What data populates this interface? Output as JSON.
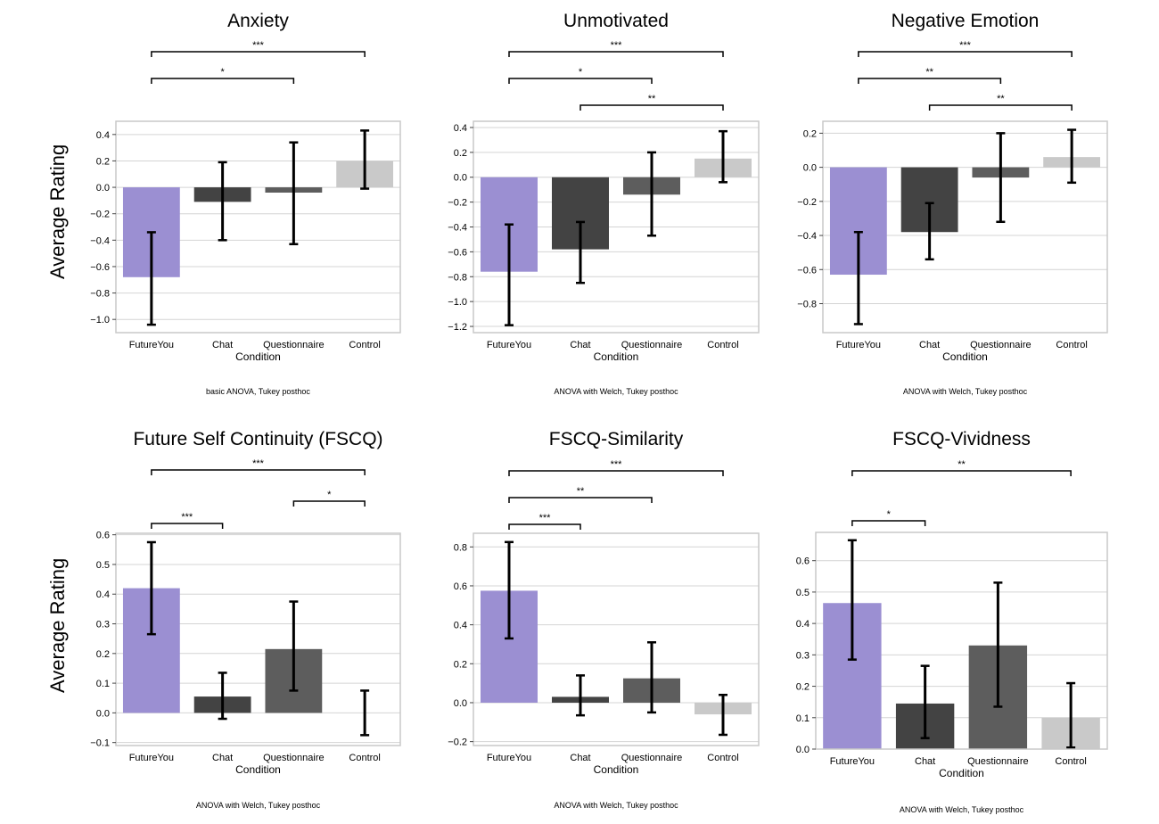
{
  "figure": {
    "ylabel_top": "Average Rating",
    "ylabel_bottom": "Average Rating"
  },
  "chart_data": [
    {
      "type": "bar",
      "title": "Anxiety",
      "xlabel": "Condition",
      "ylabel": "Average Rating",
      "note": "basic ANOVA, Tukey posthoc",
      "categories": [
        "FutureYou",
        "Chat",
        "Questionnaire",
        "Control"
      ],
      "colors": [
        "#9b8fd2",
        "#434343",
        "#5d5d5d",
        "#c9c9c9"
      ],
      "values": [
        -0.68,
        -0.11,
        -0.04,
        0.2
      ],
      "error_low": [
        -1.04,
        -0.4,
        -0.43,
        -0.01
      ],
      "error_high": [
        -0.34,
        0.19,
        0.34,
        0.43
      ],
      "yticks": [
        -1.0,
        -0.8,
        -0.6,
        -0.4,
        -0.2,
        0.0,
        0.2,
        0.4
      ],
      "ytick_labels": [
        "−1.0",
        "−0.8",
        "−0.6",
        "−0.4",
        "−0.2",
        "0.0",
        "0.2",
        "0.4"
      ],
      "ylim": [
        -1.1,
        0.5
      ],
      "grid": true,
      "significance": [
        {
          "from": 0,
          "to": 3,
          "label": "***"
        },
        {
          "from": 0,
          "to": 2,
          "label": "*"
        }
      ]
    },
    {
      "type": "bar",
      "title": "Unmotivated",
      "xlabel": "Condition",
      "ylabel": "",
      "note": "ANOVA with Welch, Tukey posthoc",
      "categories": [
        "FutureYou",
        "Chat",
        "Questionnaire",
        "Control"
      ],
      "colors": [
        "#9b8fd2",
        "#434343",
        "#5d5d5d",
        "#c9c9c9"
      ],
      "values": [
        -0.76,
        -0.58,
        -0.14,
        0.15
      ],
      "error_low": [
        -1.19,
        -0.85,
        -0.47,
        -0.04
      ],
      "error_high": [
        -0.38,
        -0.36,
        0.2,
        0.37
      ],
      "yticks": [
        -1.2,
        -1.0,
        -0.8,
        -0.6,
        -0.4,
        -0.2,
        0.0,
        0.2,
        0.4
      ],
      "ytick_labels": [
        "−1.2",
        "−1.0",
        "−0.8",
        "−0.6",
        "−0.4",
        "−0.2",
        "0.0",
        "0.2",
        "0.4"
      ],
      "ylim": [
        -1.25,
        0.45
      ],
      "grid": true,
      "significance": [
        {
          "from": 0,
          "to": 3,
          "label": "***"
        },
        {
          "from": 0,
          "to": 2,
          "label": "*"
        },
        {
          "from": 1,
          "to": 3,
          "label": "**"
        }
      ]
    },
    {
      "type": "bar",
      "title": "Negative Emotion",
      "xlabel": "Condition",
      "ylabel": "",
      "note": "ANOVA with Welch, Tukey posthoc",
      "categories": [
        "FutureYou",
        "Chat",
        "Questionnaire",
        "Control"
      ],
      "colors": [
        "#9b8fd2",
        "#434343",
        "#5d5d5d",
        "#c9c9c9"
      ],
      "values": [
        -0.63,
        -0.38,
        -0.06,
        0.06
      ],
      "error_low": [
        -0.92,
        -0.54,
        -0.32,
        -0.09
      ],
      "error_high": [
        -0.38,
        -0.21,
        0.2,
        0.22
      ],
      "yticks": [
        -0.8,
        -0.6,
        -0.4,
        -0.2,
        0.0,
        0.2
      ],
      "ytick_labels": [
        "−0.8",
        "−0.6",
        "−0.4",
        "−0.2",
        "0.0",
        "0.2"
      ],
      "ylim": [
        -0.97,
        0.27
      ],
      "grid": true,
      "significance": [
        {
          "from": 0,
          "to": 3,
          "label": "***"
        },
        {
          "from": 0,
          "to": 2,
          "label": "**"
        },
        {
          "from": 1,
          "to": 3,
          "label": "**"
        }
      ]
    },
    {
      "type": "bar",
      "title": "Future Self Continuity (FSCQ)",
      "xlabel": "Condition",
      "ylabel": "Average Rating",
      "note": "ANOVA with Welch, Tukey posthoc",
      "categories": [
        "FutureYou",
        "Chat",
        "Questionnaire",
        "Control"
      ],
      "colors": [
        "#9b8fd2",
        "#434343",
        "#5d5d5d",
        "#c9c9c9"
      ],
      "values": [
        0.42,
        0.055,
        0.215,
        0.0
      ],
      "error_low": [
        0.265,
        -0.02,
        0.075,
        -0.075
      ],
      "error_high": [
        0.575,
        0.135,
        0.375,
        0.075
      ],
      "yticks": [
        -0.1,
        0.0,
        0.1,
        0.2,
        0.3,
        0.4,
        0.5,
        0.6
      ],
      "ytick_labels": [
        "−0.1",
        "0.0",
        "0.1",
        "0.2",
        "0.3",
        "0.4",
        "0.5",
        "0.6"
      ],
      "ylim": [
        -0.11,
        0.605
      ],
      "grid": true,
      "significance": [
        {
          "from": 0,
          "to": 3,
          "label": "***"
        },
        {
          "from": 2,
          "to": 3,
          "label": "*"
        },
        {
          "from": 0,
          "to": 1,
          "label": "***"
        }
      ]
    },
    {
      "type": "bar",
      "title": "FSCQ-Similarity",
      "xlabel": "Condition",
      "ylabel": "",
      "note": "ANOVA with Welch, Tukey posthoc",
      "categories": [
        "FutureYou",
        "Chat",
        "Questionnaire",
        "Control"
      ],
      "colors": [
        "#9b8fd2",
        "#434343",
        "#5d5d5d",
        "#c9c9c9"
      ],
      "values": [
        0.575,
        0.03,
        0.125,
        -0.06
      ],
      "error_low": [
        0.33,
        -0.065,
        -0.05,
        -0.165
      ],
      "error_high": [
        0.825,
        0.14,
        0.31,
        0.04
      ],
      "yticks": [
        -0.2,
        0.0,
        0.2,
        0.4,
        0.6,
        0.8
      ],
      "ytick_labels": [
        "−0.2",
        "0.0",
        "0.2",
        "0.4",
        "0.6",
        "0.8"
      ],
      "ylim": [
        -0.22,
        0.87
      ],
      "grid": true,
      "significance": [
        {
          "from": 0,
          "to": 3,
          "label": "***"
        },
        {
          "from": 0,
          "to": 2,
          "label": "**"
        },
        {
          "from": 0,
          "to": 1,
          "label": "***"
        }
      ]
    },
    {
      "type": "bar",
      "title": "FSCQ-Vividness",
      "xlabel": "Condition",
      "ylabel": "",
      "note": "ANOVA with Welch, Tukey posthoc",
      "categories": [
        "FutureYou",
        "Chat",
        "Questionnaire",
        "Control"
      ],
      "colors": [
        "#9b8fd2",
        "#434343",
        "#5d5d5d",
        "#c9c9c9"
      ],
      "values": [
        0.465,
        0.145,
        0.33,
        0.1
      ],
      "error_low": [
        0.285,
        0.035,
        0.135,
        0.005
      ],
      "error_high": [
        0.665,
        0.265,
        0.53,
        0.21
      ],
      "yticks": [
        0.0,
        0.1,
        0.2,
        0.3,
        0.4,
        0.5,
        0.6
      ],
      "ytick_labels": [
        "0.0",
        "0.1",
        "0.2",
        "0.3",
        "0.4",
        "0.5",
        "0.6"
      ],
      "ylim": [
        0.0,
        0.69
      ],
      "grid": true,
      "significance": [
        {
          "from": 0,
          "to": 3,
          "label": "**"
        },
        {
          "from": 0,
          "to": 1,
          "label": "*"
        }
      ]
    }
  ]
}
